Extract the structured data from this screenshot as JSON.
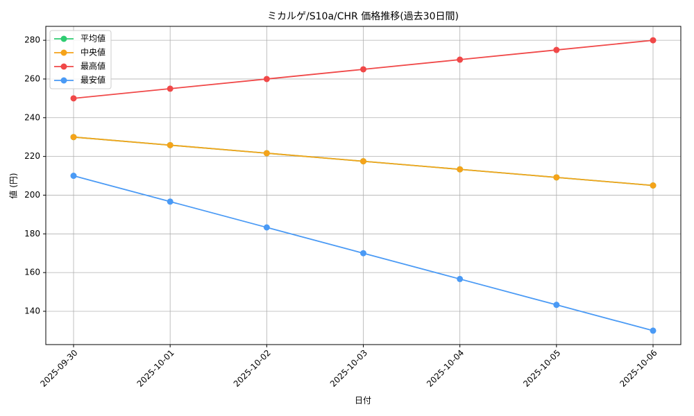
{
  "chart_data": {
    "type": "line",
    "title": "ミカルゲ/S10a/CHR 価格推移(過去30日間)",
    "x_label": "日付",
    "y_label": "値 (円)",
    "categories": [
      "2025-09-30",
      "2025-10-01",
      "2025-10-02",
      "2025-10-03",
      "2025-10-04",
      "2025-10-05",
      "2025-10-06"
    ],
    "series": [
      {
        "name": "平均値",
        "color": "#2ecc71",
        "values": [
          230,
          225.83,
          221.67,
          217.5,
          213.33,
          209.17,
          205
        ]
      },
      {
        "name": "中央値",
        "color": "#f5a31a",
        "values": [
          230,
          225.83,
          221.67,
          217.5,
          213.33,
          209.17,
          205
        ]
      },
      {
        "name": "最高値",
        "color": "#f04848",
        "values": [
          250,
          255,
          260,
          265,
          270,
          275,
          280
        ]
      },
      {
        "name": "最安値",
        "color": "#4a9af5",
        "values": [
          210,
          196.67,
          183.33,
          170,
          156.67,
          143.33,
          130
        ]
      }
    ],
    "ylim": [
      122.8,
      287.2
    ],
    "yticks": [
      140,
      160,
      180,
      200,
      220,
      240,
      260,
      280
    ],
    "grid": true,
    "legend": "upper-left"
  }
}
